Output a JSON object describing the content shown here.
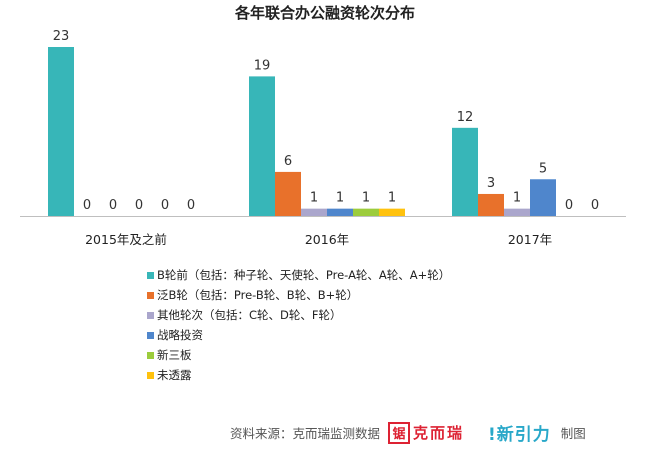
{
  "chart_data": {
    "type": "bar",
    "title": "各年联合办公融资轮次分布",
    "categories": [
      "2015年及之前",
      "2016年",
      "2017年"
    ],
    "series": [
      {
        "name": "B轮前（包括：种子轮、天使轮、Pre-A轮、A轮、A+轮）",
        "color": "#37b6b8",
        "values": [
          23,
          19,
          12
        ]
      },
      {
        "name": "泛B轮（包括：Pre-B轮、B轮、B+轮）",
        "color": "#e8712b",
        "values": [
          0,
          6,
          3
        ]
      },
      {
        "name": "其他轮次（包括：C轮、D轮、F轮）",
        "color": "#aaa6cc",
        "values": [
          0,
          1,
          1
        ]
      },
      {
        "name": "战略投资",
        "color": "#4f86cc",
        "values": [
          0,
          1,
          5
        ]
      },
      {
        "name": "新三板",
        "color": "#9ccc3c",
        "values": [
          0,
          1,
          0
        ]
      },
      {
        "name": "未透露",
        "color": "#ffc20e",
        "values": [
          0,
          1,
          0
        ]
      }
    ],
    "ylim": [
      0,
      23
    ],
    "grid": false,
    "legend_position": "bottom-left"
  },
  "footer": {
    "source": "资料来源：克而瑞监测数据",
    "logo_kr_mark": "锯",
    "logo_kr_text": "克而瑞",
    "logo_xin": "!新引力",
    "made_by": "制图"
  }
}
